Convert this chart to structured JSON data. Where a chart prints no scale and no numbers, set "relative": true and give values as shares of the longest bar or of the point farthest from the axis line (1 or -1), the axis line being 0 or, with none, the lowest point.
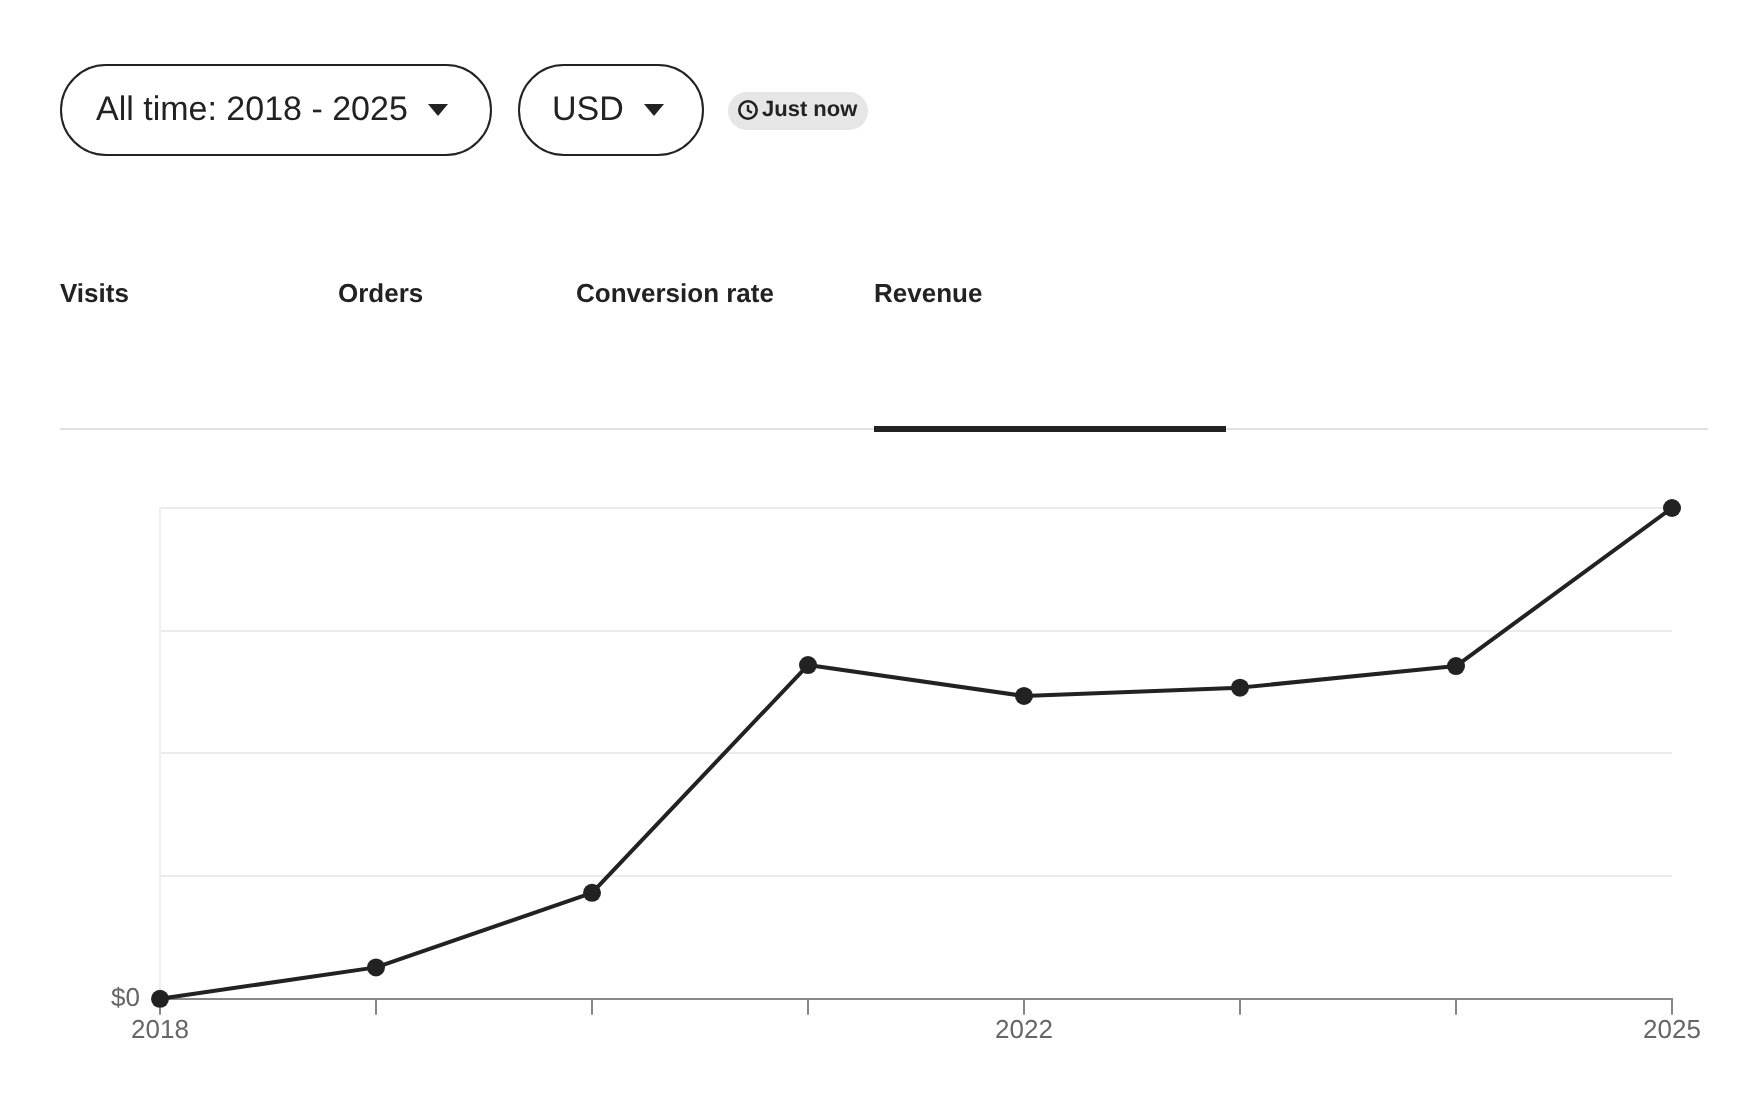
{
  "chart_data": {
    "type": "line",
    "title": "Revenue",
    "categories": [
      "2018",
      null,
      null,
      null,
      "2022",
      null,
      null,
      "2025"
    ],
    "series": [
      {
        "color": "#222222",
        "values": [
          0,
          0.064,
          0.216,
          0.68,
          0.617,
          0.634,
          0.678,
          1
        ]
      }
    ],
    "relative": true,
    "grid": "y",
    "marker": "circle",
    "line_style": "solid",
    "legend": false,
    "annotations": [
      "All time: 2018 - 2025",
      "USD",
      "Just now",
      "Visits",
      "Orders",
      "Conversion rate",
      "$0"
    ]
  }
}
